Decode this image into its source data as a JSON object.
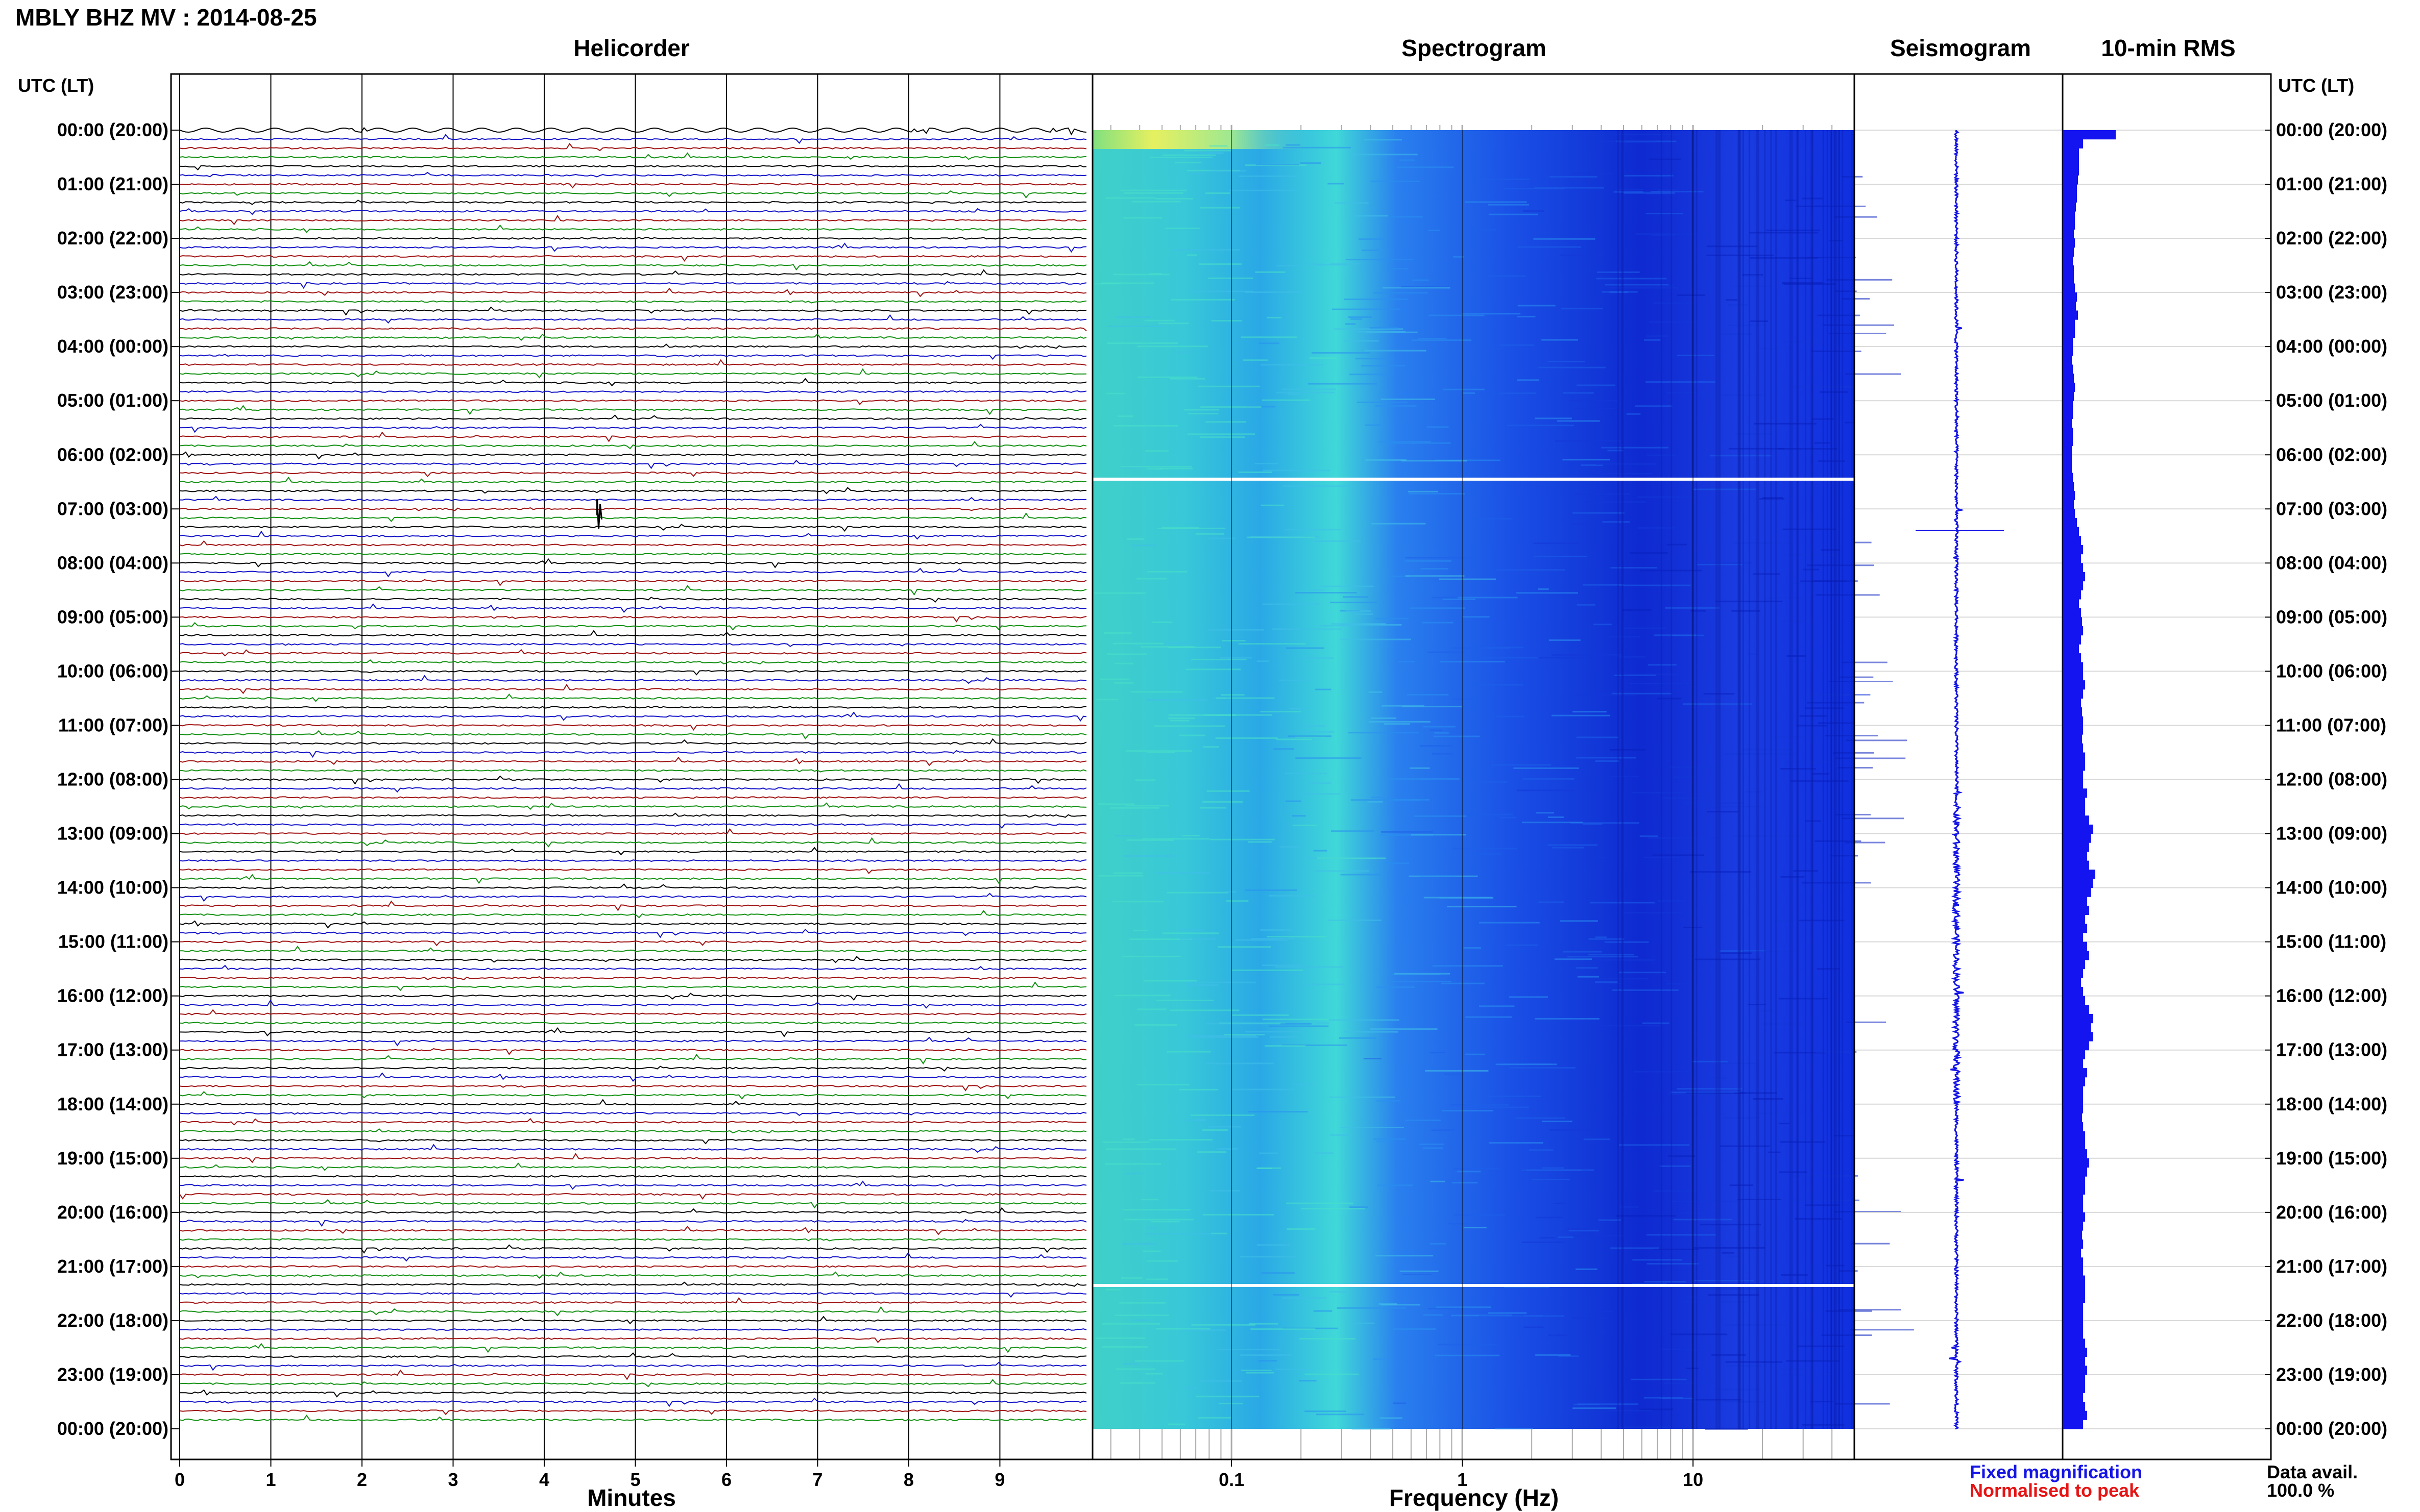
{
  "title": "MBLY BHZ MV : 2014-08-25",
  "panels": {
    "helicorder": "Helicorder",
    "spectrogram": "Spectrogram",
    "seismogram": "Seismogram",
    "rms": "10-min RMS"
  },
  "axis_labels": {
    "utc_left": "UTC (LT)",
    "utc_right": "UTC (LT)",
    "minutes": "Minutes",
    "frequency": "Frequency (Hz)"
  },
  "legend": {
    "fixed": "Fixed magnification",
    "normalised": "Normalised to peak",
    "data_avail_label": "Data avail.",
    "data_avail_value": "100.0 %"
  },
  "colors": {
    "trace_cycle": [
      "#000000",
      "#1010c8",
      "#a01010",
      "#109010"
    ],
    "seismogram": "#1414e6",
    "rms": "#1414f0",
    "grid": "#cccccc"
  },
  "chart_data": {
    "type": "heatmap",
    "time_labels": [
      "00:00 (20:00)",
      "01:00 (21:00)",
      "02:00 (22:00)",
      "03:00 (23:00)",
      "04:00 (00:00)",
      "05:00 (01:00)",
      "06:00 (02:00)",
      "07:00 (03:00)",
      "08:00 (04:00)",
      "09:00 (05:00)",
      "10:00 (06:00)",
      "11:00 (07:00)",
      "12:00 (08:00)",
      "13:00 (09:00)",
      "14:00 (10:00)",
      "15:00 (11:00)",
      "16:00 (12:00)",
      "17:00 (13:00)",
      "18:00 (14:00)",
      "19:00 (15:00)",
      "20:00 (16:00)",
      "21:00 (17:00)",
      "22:00 (18:00)",
      "23:00 (19:00)",
      "00:00 (20:00)"
    ],
    "minute_ticks": [
      "0",
      "1",
      "2",
      "3",
      "4",
      "5",
      "6",
      "7",
      "8",
      "9"
    ],
    "freq_ticks": [
      {
        "value": 0.1,
        "label": "0.1"
      },
      {
        "value": 1,
        "label": "1"
      },
      {
        "value": 10,
        "label": "10"
      }
    ],
    "freq_range_hz": [
      0.025,
      50
    ],
    "freq_scale": "log",
    "minutes_range": [
      0,
      10
    ],
    "hours_range": [
      0,
      24
    ],
    "rows_per_hour": 6,
    "spectrogram_gaps_hours": [
      6.45,
      21.35
    ],
    "rms_10min": [
      2.6,
      1.0,
      0.8,
      0.8,
      0.8,
      0.75,
      0.7,
      0.7,
      0.65,
      0.6,
      0.6,
      0.55,
      0.6,
      0.55,
      0.5,
      0.55,
      0.55,
      0.6,
      0.7,
      0.65,
      0.75,
      0.6,
      0.6,
      0.5,
      0.5,
      0.45,
      0.5,
      0.55,
      0.6,
      0.55,
      0.5,
      0.5,
      0.45,
      0.5,
      0.5,
      0.45,
      0.45,
      0.45,
      0.5,
      0.55,
      0.6,
      0.55,
      0.6,
      0.7,
      0.8,
      0.9,
      1.0,
      0.9,
      1.0,
      1.1,
      1.0,
      0.9,
      0.8,
      0.9,
      0.95,
      1.0,
      0.9,
      0.8,
      0.9,
      1.0,
      1.0,
      1.1,
      1.0,
      0.9,
      0.95,
      1.0,
      1.0,
      0.95,
      1.0,
      1.1,
      1.1,
      1.0,
      1.0,
      1.2,
      1.1,
      1.1,
      1.3,
      1.5,
      1.4,
      1.3,
      1.2,
      1.3,
      1.6,
      1.5,
      1.4,
      1.2,
      1.3,
      1.1,
      1.2,
      1.0,
      1.2,
      1.3,
      1.1,
      1.0,
      0.9,
      1.0,
      1.1,
      1.3,
      1.5,
      1.4,
      1.5,
      1.3,
      1.1,
      1.0,
      1.2,
      1.1,
      1.0,
      1.0,
      1.0,
      0.95,
      1.0,
      1.1,
      1.1,
      1.2,
      1.3,
      1.2,
      1.1,
      1.1,
      1.0,
      1.0,
      1.1,
      1.0,
      0.95,
      1.0,
      0.9,
      1.0,
      1.0,
      1.1,
      1.1,
      1.1,
      1.0,
      1.0,
      1.0,
      1.0,
      1.1,
      1.2,
      1.1,
      1.2,
      1.1,
      1.1,
      1.0,
      1.1,
      1.2,
      1.0
    ]
  }
}
